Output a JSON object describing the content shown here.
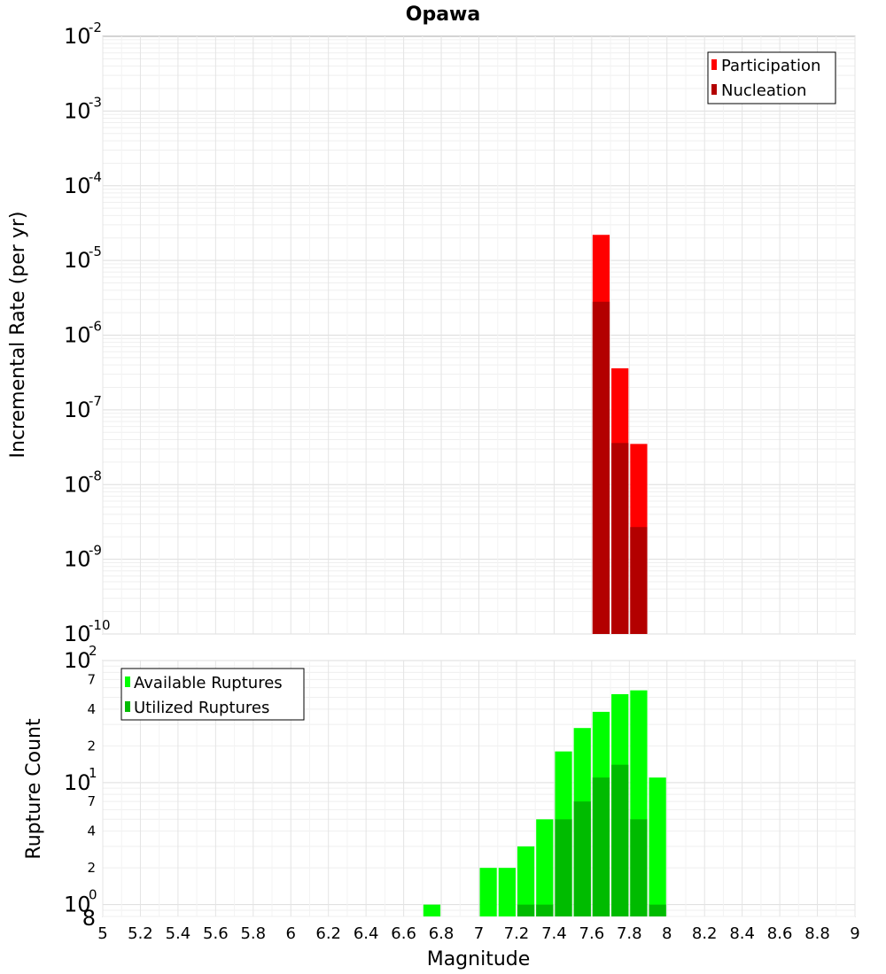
{
  "chart_data": [
    {
      "type": "bar",
      "title": "Opawa",
      "ylabel": "Incremental Rate (per yr)",
      "xlabel": "",
      "yscale": "log",
      "ylim": [
        1e-10,
        0.01
      ],
      "xlim": [
        5,
        9
      ],
      "grid": true,
      "legend_position": "top-right",
      "y_tick_labels": [
        {
          "base": "10",
          "exp": "-2"
        },
        {
          "base": "10",
          "exp": "-3"
        },
        {
          "base": "10",
          "exp": "-4"
        },
        {
          "base": "10",
          "exp": "-5"
        },
        {
          "base": "10",
          "exp": "-6"
        },
        {
          "base": "10",
          "exp": "-7"
        },
        {
          "base": "10",
          "exp": "-8"
        },
        {
          "base": "10",
          "exp": "-9"
        },
        {
          "base": "10",
          "exp": "-10"
        }
      ],
      "x": [
        7.65,
        7.75,
        7.85
      ],
      "series": [
        {
          "name": "Participation",
          "color": "#ff0000",
          "values": [
            2.2e-05,
            3.6e-07,
            3.5e-08
          ]
        },
        {
          "name": "Nucleation",
          "color": "#b30000",
          "values": [
            2.8e-06,
            3.6e-08,
            2.7e-09
          ]
        }
      ]
    },
    {
      "type": "bar",
      "title": "",
      "ylabel": "Rupture Count",
      "xlabel": "Magnitude",
      "yscale": "log",
      "ylim": [
        0.8,
        100
      ],
      "xlim": [
        5,
        9
      ],
      "grid": true,
      "legend_position": "top-left",
      "x_ticks": [
        "5",
        "5.2",
        "5.4",
        "5.6",
        "5.8",
        "6",
        "6.2",
        "6.4",
        "6.6",
        "6.8",
        "7",
        "7.2",
        "7.4",
        "7.6",
        "7.8",
        "8",
        "8.2",
        "8.4",
        "8.6",
        "8.8",
        "9"
      ],
      "y_tick_labels": [
        {
          "base": "10",
          "exp": "2"
        },
        {
          "base": "10",
          "exp": "1"
        },
        {
          "base": "10",
          "exp": "0"
        }
      ],
      "y_minor_labels": [
        {
          "label": "7",
          "value": 70
        },
        {
          "label": "4",
          "value": 40
        },
        {
          "label": "2",
          "value": 20
        },
        {
          "label": "7",
          "value": 7
        },
        {
          "label": "4",
          "value": 4
        },
        {
          "label": "2",
          "value": 2
        },
        {
          "label": "8",
          "value": 0.8
        }
      ],
      "x": [
        6.75,
        7.05,
        7.15,
        7.25,
        7.35,
        7.45,
        7.55,
        7.65,
        7.75,
        7.85,
        7.95
      ],
      "series": [
        {
          "name": "Available Ruptures",
          "color": "#00ff00",
          "values": [
            1,
            2,
            2,
            3,
            5,
            18,
            28,
            38,
            53,
            57,
            11
          ]
        },
        {
          "name": "Utilized Ruptures",
          "color": "#00bb00",
          "values": [
            0,
            0,
            0,
            1,
            1,
            5,
            7,
            11,
            14,
            5,
            1
          ]
        }
      ]
    }
  ]
}
